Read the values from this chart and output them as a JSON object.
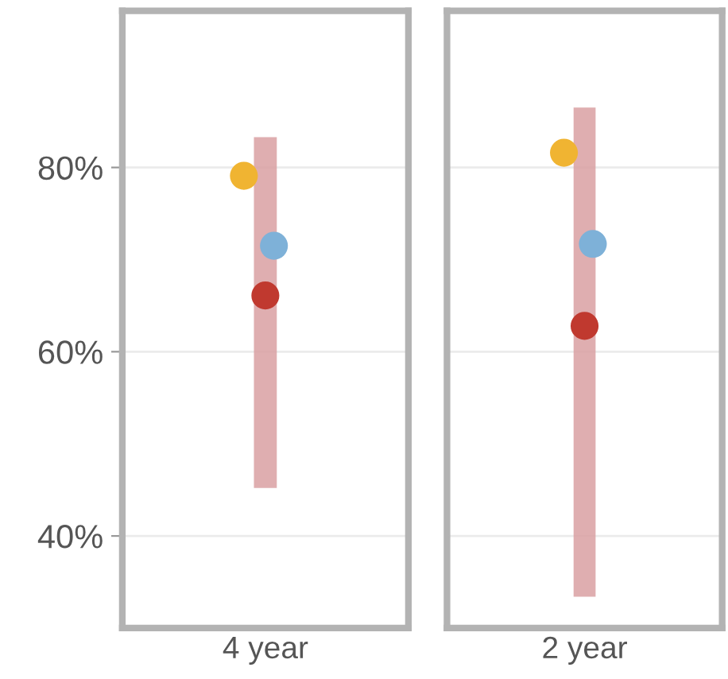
{
  "chart_data": [
    {
      "type": "scatter",
      "categories": [
        "4 year"
      ],
      "ylim": [
        30,
        97
      ],
      "yticks": [
        {
          "value": 40,
          "label": "40%"
        },
        {
          "value": 60,
          "label": "60%"
        },
        {
          "value": 80,
          "label": "80%"
        }
      ],
      "grid": "y",
      "marker": "circle",
      "series": [
        {
          "type": "bar",
          "color": "#d9a0a2",
          "base": [
            45.2
          ],
          "values": [
            38.1
          ]
        },
        {
          "color": "#f0b432",
          "values": [
            79.1
          ]
        },
        {
          "color": "#7eb1d8",
          "values": [
            71.5
          ]
        },
        {
          "color": "#c0392f",
          "values": [
            66.1
          ]
        }
      ]
    },
    {
      "type": "scatter",
      "categories": [
        "2 year"
      ],
      "ylim": [
        30,
        97
      ],
      "yticks": [
        40,
        60,
        80
      ],
      "grid": "y",
      "marker": "circle",
      "tick_labels": "x",
      "series": [
        {
          "type": "bar",
          "color": "#d9a0a2",
          "base": [
            33.4
          ],
          "values": [
            53.1
          ]
        },
        {
          "color": "#f0b432",
          "values": [
            81.6
          ]
        },
        {
          "color": "#7eb1d8",
          "values": [
            71.7
          ]
        },
        {
          "color": "#c0392f",
          "values": [
            62.8
          ]
        }
      ]
    }
  ]
}
